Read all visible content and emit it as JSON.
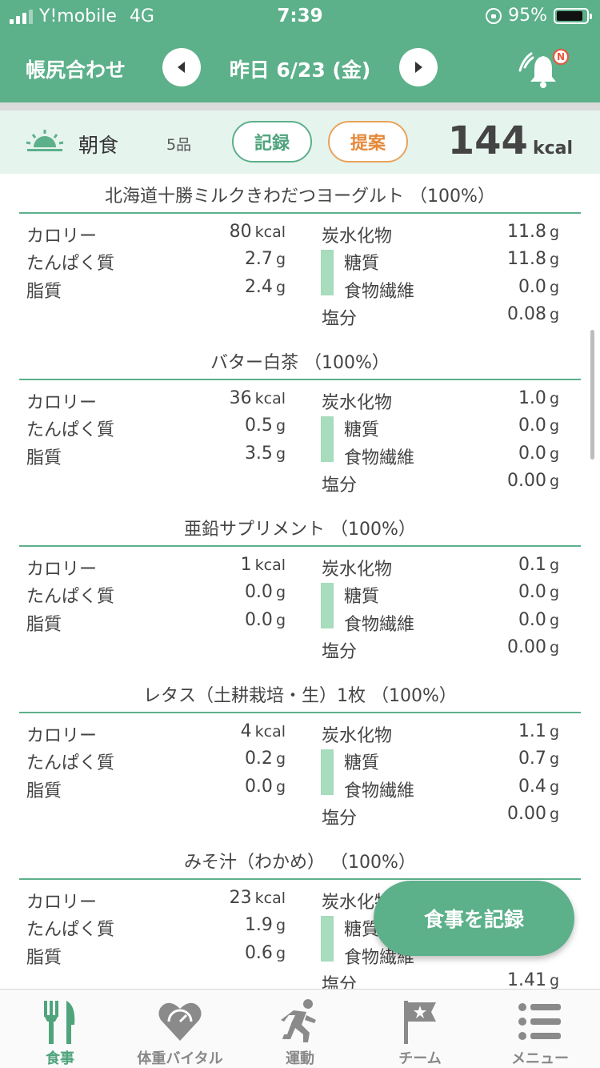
{
  "status": {
    "carrier": "Y!mobile",
    "network": "4G",
    "time": "7:39",
    "battery": "95%"
  },
  "header": {
    "title": "帳尻合わせ",
    "date": "昨日 6/23 (金)",
    "icons": [
      "chevron-left-icon",
      "chevron-right-icon",
      "bell-icon"
    ],
    "badge": "N"
  },
  "meal": {
    "name": "朝食",
    "count": "5品",
    "record_label": "記録",
    "suggest_label": "提案",
    "kcal": "144",
    "kcal_unit": "kcal"
  },
  "labels": {
    "calorie": "カロリー",
    "protein": "たんぱく質",
    "fat": "脂質",
    "carbs": "炭水化物",
    "sugar": "糖質",
    "fiber": "食物繊維",
    "salt": "塩分",
    "kcal": "kcal",
    "g": "g"
  },
  "foods": [
    {
      "name": "北海道十勝ミルクきわだつヨーグルト （100%）",
      "calorie": "80",
      "protein": "2.7",
      "fat": "2.4",
      "carbs": "11.8",
      "sugar": "11.8",
      "fiber": "0.0",
      "salt": "0.08"
    },
    {
      "name": "バター白茶 （100%）",
      "calorie": "36",
      "protein": "0.5",
      "fat": "3.5",
      "carbs": "1.0",
      "sugar": "0.0",
      "fiber": "0.0",
      "salt": "0.00"
    },
    {
      "name": "亜鉛サプリメント （100%）",
      "calorie": "1",
      "protein": "0.0",
      "fat": "0.0",
      "carbs": "0.1",
      "sugar": "0.0",
      "fiber": "0.0",
      "salt": "0.00"
    },
    {
      "name": "レタス（土耕栽培・生）1枚 （100%）",
      "calorie": "4",
      "protein": "0.2",
      "fat": "0.0",
      "carbs": "1.1",
      "sugar": "0.7",
      "fiber": "0.4",
      "salt": "0.00"
    },
    {
      "name": "みそ汁（わかめ） （100%）",
      "calorie": "23",
      "protein": "1.9",
      "fat": "0.6",
      "carbs": "",
      "sugar": "",
      "fiber": "",
      "salt": "1.41"
    }
  ],
  "fab_label": "食事を記録",
  "tabs": [
    {
      "label": "食事",
      "icon": "fork-knife-icon",
      "active": true
    },
    {
      "label": "体重バイタル",
      "icon": "heart-scale-icon",
      "active": false
    },
    {
      "label": "運動",
      "icon": "running-icon",
      "active": false
    },
    {
      "label": "チーム",
      "icon": "flag-icon",
      "active": false
    },
    {
      "label": "メニュー",
      "icon": "menu-list-icon",
      "active": false
    }
  ],
  "colors": {
    "primary": "#5cb08a",
    "meal_bg": "#e6f4ee",
    "suggest": "#e5893a",
    "bar": "#a7dcbd"
  }
}
